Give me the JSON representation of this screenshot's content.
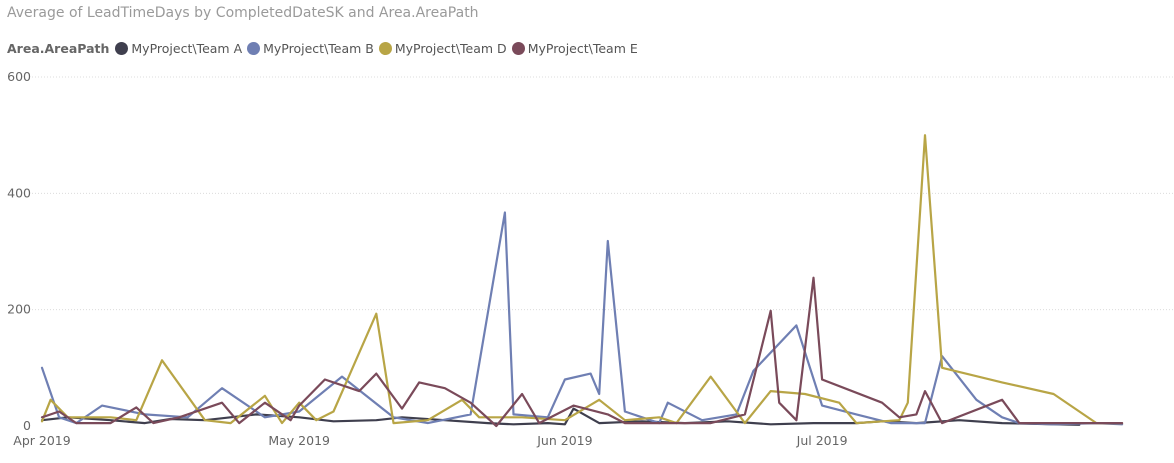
{
  "chart_data": {
    "type": "line",
    "title": "Average of LeadTimeDays by CompletedDateSK and Area.AreaPath",
    "legend_title": "Area.AreaPath",
    "legend_position": "top-left",
    "grid": true,
    "x_range": [
      "2019-04-01",
      "2019-08-10"
    ],
    "ylim": [
      0,
      600
    ],
    "y_ticks": [
      {
        "value": 0,
        "label": "0"
      },
      {
        "value": 200,
        "label": "200"
      },
      {
        "value": 400,
        "label": "400"
      },
      {
        "value": 600,
        "label": "600"
      }
    ],
    "x_ticks": [
      {
        "date": "2019-04-01",
        "label": "Apr 2019"
      },
      {
        "date": "2019-05-01",
        "label": "May 2019"
      },
      {
        "date": "2019-06-01",
        "label": "Jun 2019"
      },
      {
        "date": "2019-07-01",
        "label": "Jul 2019"
      }
    ],
    "series": [
      {
        "name": "MyProject\\Team A",
        "color": "#3f3f4e",
        "points": [
          [
            "2019-04-01",
            10
          ],
          [
            "2019-04-04",
            15
          ],
          [
            "2019-04-09",
            10
          ],
          [
            "2019-04-13",
            5
          ],
          [
            "2019-04-16",
            12
          ],
          [
            "2019-04-20",
            10
          ],
          [
            "2019-04-26",
            20
          ],
          [
            "2019-05-01",
            15
          ],
          [
            "2019-05-05",
            8
          ],
          [
            "2019-05-10",
            10
          ],
          [
            "2019-05-13",
            15
          ],
          [
            "2019-05-18",
            10
          ],
          [
            "2019-05-23",
            5
          ],
          [
            "2019-05-26",
            3
          ],
          [
            "2019-05-30",
            5
          ],
          [
            "2019-06-01",
            3
          ],
          [
            "2019-06-02",
            30
          ],
          [
            "2019-06-05",
            5
          ],
          [
            "2019-06-10",
            8
          ],
          [
            "2019-06-15",
            5
          ],
          [
            "2019-06-20",
            8
          ],
          [
            "2019-06-25",
            3
          ],
          [
            "2019-06-30",
            5
          ],
          [
            "2019-07-05",
            5
          ],
          [
            "2019-07-08",
            8
          ],
          [
            "2019-07-12",
            5
          ],
          [
            "2019-07-17",
            10
          ],
          [
            "2019-07-22",
            5
          ],
          [
            "2019-07-28",
            3
          ],
          [
            "2019-07-31",
            2
          ]
        ]
      },
      {
        "name": "MyProject\\Team B",
        "color": "#6f7fb3",
        "points": [
          [
            "2019-04-01",
            100
          ],
          [
            "2019-04-03",
            15
          ],
          [
            "2019-04-05",
            5
          ],
          [
            "2019-04-08",
            35
          ],
          [
            "2019-04-13",
            20
          ],
          [
            "2019-04-18",
            15
          ],
          [
            "2019-04-22",
            65
          ],
          [
            "2019-04-27",
            15
          ],
          [
            "2019-05-01",
            25
          ],
          [
            "2019-05-06",
            85
          ],
          [
            "2019-05-12",
            15
          ],
          [
            "2019-05-16",
            5
          ],
          [
            "2019-05-21",
            20
          ],
          [
            "2019-05-25",
            367
          ],
          [
            "2019-05-26",
            20
          ],
          [
            "2019-05-30",
            15
          ],
          [
            "2019-06-01",
            80
          ],
          [
            "2019-06-04",
            90
          ],
          [
            "2019-06-05",
            55
          ],
          [
            "2019-06-06",
            318
          ],
          [
            "2019-06-08",
            25
          ],
          [
            "2019-06-12",
            5
          ],
          [
            "2019-06-13",
            40
          ],
          [
            "2019-06-17",
            10
          ],
          [
            "2019-06-21",
            20
          ],
          [
            "2019-06-23",
            95
          ],
          [
            "2019-06-28",
            173
          ],
          [
            "2019-07-01",
            35
          ],
          [
            "2019-07-05",
            20
          ],
          [
            "2019-07-09",
            5
          ],
          [
            "2019-07-13",
            5
          ],
          [
            "2019-07-15",
            120
          ],
          [
            "2019-07-19",
            45
          ],
          [
            "2019-07-22",
            15
          ],
          [
            "2019-07-24",
            5
          ],
          [
            "2019-07-28",
            3
          ],
          [
            "2019-08-02",
            5
          ],
          [
            "2019-08-05",
            3
          ]
        ]
      },
      {
        "name": "MyProject\\Team D",
        "color": "#b8a546",
        "points": [
          [
            "2019-04-01",
            8
          ],
          [
            "2019-04-02",
            45
          ],
          [
            "2019-04-04",
            15
          ],
          [
            "2019-04-09",
            15
          ],
          [
            "2019-04-12",
            10
          ],
          [
            "2019-04-15",
            113
          ],
          [
            "2019-04-20",
            10
          ],
          [
            "2019-04-23",
            5
          ],
          [
            "2019-04-27",
            52
          ],
          [
            "2019-04-29",
            5
          ],
          [
            "2019-05-01",
            40
          ],
          [
            "2019-05-03",
            10
          ],
          [
            "2019-05-05",
            25
          ],
          [
            "2019-05-10",
            193
          ],
          [
            "2019-05-12",
            5
          ],
          [
            "2019-05-16",
            10
          ],
          [
            "2019-05-20",
            45
          ],
          [
            "2019-05-22",
            15
          ],
          [
            "2019-05-27",
            15
          ],
          [
            "2019-06-01",
            10
          ],
          [
            "2019-06-05",
            45
          ],
          [
            "2019-06-08",
            10
          ],
          [
            "2019-06-12",
            15
          ],
          [
            "2019-06-14",
            5
          ],
          [
            "2019-06-18",
            85
          ],
          [
            "2019-06-22",
            5
          ],
          [
            "2019-06-25",
            60
          ],
          [
            "2019-06-29",
            55
          ],
          [
            "2019-07-03",
            40
          ],
          [
            "2019-07-05",
            5
          ],
          [
            "2019-07-10",
            10
          ],
          [
            "2019-07-11",
            40
          ],
          [
            "2019-07-13",
            500
          ],
          [
            "2019-07-15",
            100
          ],
          [
            "2019-07-22",
            75
          ],
          [
            "2019-07-28",
            55
          ],
          [
            "2019-08-02",
            5
          ],
          [
            "2019-08-05",
            5
          ]
        ]
      },
      {
        "name": "MyProject\\Team E",
        "color": "#7a4a5a",
        "points": [
          [
            "2019-04-01",
            15
          ],
          [
            "2019-04-03",
            25
          ],
          [
            "2019-04-05",
            5
          ],
          [
            "2019-04-09",
            5
          ],
          [
            "2019-04-12",
            32
          ],
          [
            "2019-04-14",
            5
          ],
          [
            "2019-04-17",
            15
          ],
          [
            "2019-04-22",
            40
          ],
          [
            "2019-04-24",
            5
          ],
          [
            "2019-04-27",
            40
          ],
          [
            "2019-04-30",
            10
          ],
          [
            "2019-05-01",
            35
          ],
          [
            "2019-05-04",
            80
          ],
          [
            "2019-05-08",
            60
          ],
          [
            "2019-05-10",
            90
          ],
          [
            "2019-05-13",
            30
          ],
          [
            "2019-05-15",
            75
          ],
          [
            "2019-05-18",
            65
          ],
          [
            "2019-05-21",
            40
          ],
          [
            "2019-05-24",
            0
          ],
          [
            "2019-05-27",
            55
          ],
          [
            "2019-05-29",
            5
          ],
          [
            "2019-06-02",
            35
          ],
          [
            "2019-06-06",
            20
          ],
          [
            "2019-06-08",
            5
          ],
          [
            "2019-06-12",
            5
          ],
          [
            "2019-06-18",
            5
          ],
          [
            "2019-06-22",
            20
          ],
          [
            "2019-06-25",
            198
          ],
          [
            "2019-06-26",
            40
          ],
          [
            "2019-06-28",
            10
          ],
          [
            "2019-06-30",
            255
          ],
          [
            "2019-07-01",
            80
          ],
          [
            "2019-07-08",
            40
          ],
          [
            "2019-07-10",
            15
          ],
          [
            "2019-07-12",
            20
          ],
          [
            "2019-07-13",
            60
          ],
          [
            "2019-07-15",
            5
          ],
          [
            "2019-07-22",
            45
          ],
          [
            "2019-07-24",
            5
          ],
          [
            "2019-07-30",
            5
          ],
          [
            "2019-08-05",
            5
          ]
        ]
      }
    ]
  }
}
